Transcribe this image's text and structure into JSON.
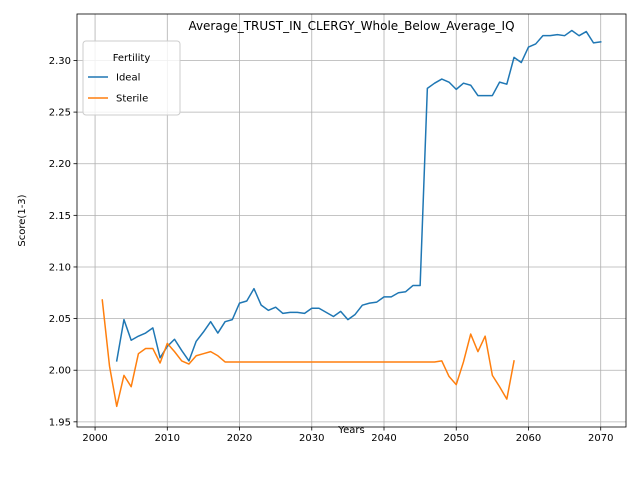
{
  "chart_data": {
    "type": "line",
    "title": "Average_TRUST_IN_CLERGY_Whole_Below_Average_IQ",
    "xlabel": "Years",
    "ylabel": "Score(1-3)",
    "xlim": [
      1997.5,
      2073.5
    ],
    "ylim": [
      1.945,
      2.345
    ],
    "xticks": [
      2000,
      2010,
      2020,
      2030,
      2040,
      2050,
      2060,
      2070
    ],
    "yticks": [
      1.95,
      2.0,
      2.05,
      2.1,
      2.15,
      2.2,
      2.25,
      2.3
    ],
    "ytick_labels": [
      "1.95",
      "2.00",
      "2.05",
      "2.10",
      "2.15",
      "2.20",
      "2.25",
      "2.30"
    ],
    "grid": true,
    "legend": {
      "title": "Fertility",
      "position": "top-left"
    },
    "series": [
      {
        "name": "Ideal",
        "color": "#1f77b4",
        "x": [
          2003,
          2004,
          2005,
          2006,
          2007,
          2008,
          2009,
          2010,
          2011,
          2012,
          2013,
          2014,
          2015,
          2016,
          2017,
          2018,
          2019,
          2020,
          2021,
          2022,
          2023,
          2024,
          2025,
          2026,
          2027,
          2028,
          2029,
          2030,
          2031,
          2032,
          2033,
          2034,
          2035,
          2036,
          2037,
          2038,
          2039,
          2040,
          2041,
          2042,
          2043,
          2044,
          2045,
          2046,
          2047,
          2048,
          2049,
          2050,
          2051,
          2052,
          2053,
          2054,
          2055,
          2056,
          2057,
          2058,
          2059,
          2060,
          2061,
          2062,
          2063,
          2064,
          2065,
          2066,
          2067,
          2068,
          2069,
          2070
        ],
        "y": [
          2.009,
          2.049,
          2.029,
          2.033,
          2.036,
          2.041,
          2.012,
          2.023,
          2.03,
          2.019,
          2.009,
          2.028,
          2.037,
          2.047,
          2.036,
          2.047,
          2.049,
          2.065,
          2.067,
          2.079,
          2.063,
          2.058,
          2.061,
          2.055,
          2.056,
          2.056,
          2.055,
          2.06,
          2.06,
          2.056,
          2.052,
          2.057,
          2.049,
          2.054,
          2.063,
          2.065,
          2.066,
          2.071,
          2.071,
          2.075,
          2.076,
          2.082,
          2.082,
          2.273,
          2.278,
          2.282,
          2.279,
          2.272,
          2.278,
          2.276,
          2.266,
          2.266,
          2.266,
          2.279,
          2.277,
          2.303,
          2.298,
          2.313,
          2.316,
          2.324,
          2.324,
          2.325,
          2.324,
          2.329,
          2.324,
          2.328,
          2.317,
          2.318
        ]
      },
      {
        "name": "Sterile",
        "color": "#ff7f0e",
        "x": [
          2001,
          2002,
          2003,
          2004,
          2005,
          2006,
          2007,
          2008,
          2009,
          2010,
          2011,
          2012,
          2013,
          2014,
          2015,
          2016,
          2017,
          2018,
          2019,
          2020,
          2021,
          2022,
          2023,
          2024,
          2025,
          2026,
          2027,
          2028,
          2029,
          2030,
          2031,
          2032,
          2033,
          2034,
          2035,
          2036,
          2037,
          2038,
          2039,
          2040,
          2041,
          2042,
          2043,
          2044,
          2045,
          2046,
          2047,
          2048,
          2049,
          2050,
          2051,
          2052,
          2053,
          2054,
          2055,
          2056,
          2057,
          2058
        ],
        "y": [
          2.068,
          2.004,
          1.965,
          1.995,
          1.984,
          2.016,
          2.021,
          2.021,
          2.007,
          2.026,
          2.018,
          2.009,
          2.006,
          2.014,
          2.016,
          2.018,
          2.014,
          2.008,
          2.008,
          2.008,
          2.008,
          2.008,
          2.008,
          2.008,
          2.008,
          2.008,
          2.008,
          2.008,
          2.008,
          2.008,
          2.008,
          2.008,
          2.008,
          2.008,
          2.008,
          2.008,
          2.008,
          2.008,
          2.008,
          2.008,
          2.008,
          2.008,
          2.008,
          2.008,
          2.008,
          2.008,
          2.008,
          2.009,
          1.994,
          1.986,
          2.008,
          2.035,
          2.018,
          2.033,
          1.995,
          1.984,
          1.972,
          2.009
        ]
      }
    ]
  }
}
